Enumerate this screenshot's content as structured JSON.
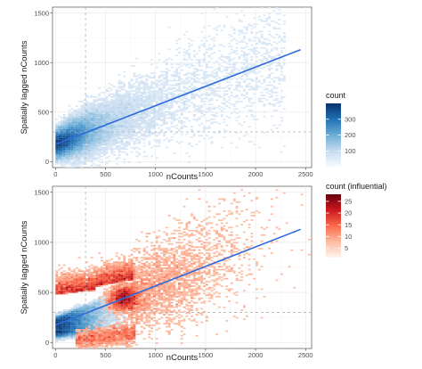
{
  "chart_data": [
    {
      "type": "heatmap",
      "title": "",
      "xlabel": "nCounts",
      "ylabel": "Spatially lagged nCounts",
      "xlim": [
        -30,
        2560
      ],
      "ylim": [
        -60,
        1560
      ],
      "xticks": [
        0,
        500,
        1000,
        1500,
        2000,
        2500
      ],
      "yticks": [
        0,
        500,
        1000,
        1500
      ],
      "x_tick_labels": [
        "0",
        "500",
        "1000",
        "1500",
        "2000",
        "2500"
      ],
      "y_tick_labels": [
        "0",
        "500",
        "1000",
        "1500"
      ],
      "grid": true,
      "regression_line": {
        "x": [
          0,
          2450
        ],
        "y": [
          175,
          1130
        ],
        "color": "#2e6bdc"
      },
      "reference_lines": {
        "vertical_x": 300,
        "horizontal_y": 300,
        "style": "dashed",
        "color": "#b3b3b3"
      },
      "fill_scale": {
        "name": "count",
        "palette": "Blues",
        "colors": [
          "#f7fbff",
          "#c6dbef",
          "#6baed6",
          "#2171b5",
          "#08306b"
        ],
        "range": [
          1,
          400
        ],
        "breaks": [
          100,
          200,
          300
        ],
        "break_labels": [
          "100",
          "200",
          "300"
        ]
      },
      "density_description": "dense cluster near (150, 200), fan of points along the regression line, sparse up to about (2200, 1100)"
    },
    {
      "type": "heatmap",
      "title": "",
      "xlabel": "nCounts",
      "ylabel": "Spatially lagged nCounts",
      "xlim": [
        -30,
        2560
      ],
      "ylim": [
        -60,
        1560
      ],
      "xticks": [
        0,
        500,
        1000,
        1500,
        2000,
        2500
      ],
      "yticks": [
        0,
        500,
        1000,
        1500
      ],
      "x_tick_labels": [
        "0",
        "500",
        "1000",
        "1500",
        "2000",
        "2500"
      ],
      "y_tick_labels": [
        "0",
        "500",
        "1000",
        "1500"
      ],
      "grid": true,
      "regression_line": {
        "x": [
          0,
          2450
        ],
        "y": [
          175,
          1130
        ],
        "color": "#2e6bdc"
      },
      "reference_lines": {
        "vertical_x": 300,
        "horizontal_y": 300,
        "style": "dashed",
        "color": "#b3b3b3"
      },
      "fill_scale": {
        "name": "count (influential)",
        "palette": "Reds",
        "colors": [
          "#fff5f0",
          "#fcbba1",
          "#fb6a4a",
          "#cb181d",
          "#67000d"
        ],
        "range": [
          1,
          28
        ],
        "breaks": [
          5,
          10,
          15,
          20,
          25
        ],
        "break_labels": [
          "5",
          "10",
          "15",
          "20",
          "25"
        ]
      },
      "density_description": "blue non-influential core wedge from (0, 100) to (700, 500); red influential cells surround it and spread out to about (2300, 1100)"
    }
  ]
}
